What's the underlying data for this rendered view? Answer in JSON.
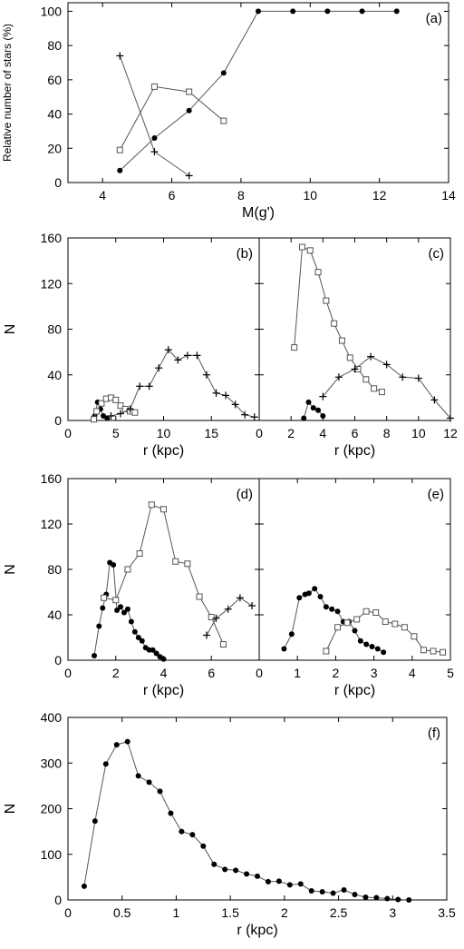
{
  "chart_data": [
    {
      "panel": "a",
      "type": "line",
      "tag": "(a)",
      "xlabel": "M(g')",
      "ylabel": "Relative number of stars (%)",
      "xlim": [
        3,
        14
      ],
      "ylim": [
        0,
        105
      ],
      "xticks": [
        4,
        6,
        8,
        10,
        12,
        14
      ],
      "yticks": [
        0,
        20,
        40,
        60,
        80,
        100
      ],
      "series": [
        {
          "marker": "dot",
          "x": [
            4.5,
            5.5,
            6.5,
            7.5,
            8.5,
            9.5,
            10.5,
            11.5,
            12.5
          ],
          "y": [
            7,
            26,
            42,
            64,
            100,
            100,
            100,
            100,
            100
          ]
        },
        {
          "marker": "square",
          "x": [
            4.5,
            5.5,
            6.5,
            7.5
          ],
          "y": [
            19,
            56,
            53,
            36
          ]
        },
        {
          "marker": "plus",
          "x": [
            4.5,
            5.5,
            6.5
          ],
          "y": [
            74,
            18,
            4
          ]
        }
      ]
    },
    {
      "panel": "b",
      "type": "line",
      "tag": "(b)",
      "xlabel": "r (kpc)",
      "ylabel": "N",
      "xlim": [
        0,
        20
      ],
      "ylim": [
        0,
        160
      ],
      "xticks": [
        0,
        5,
        10,
        15
      ],
      "yticks": [
        0,
        40,
        80,
        120,
        160
      ],
      "series": [
        {
          "marker": "dot",
          "x": [
            2.8,
            3.1,
            3.4,
            3.7,
            4.1
          ],
          "y": [
            4,
            16,
            10,
            4,
            2
          ]
        },
        {
          "marker": "square",
          "x": [
            2.7,
            3.0,
            3.5,
            4.0,
            4.5,
            5.0,
            5.5,
            6.0,
            6.5,
            7.0
          ],
          "y": [
            1,
            8,
            15,
            19,
            20,
            18,
            13,
            10,
            8,
            7
          ]
        },
        {
          "marker": "plus",
          "x": [
            4.5,
            5.5,
            6.5,
            7.5,
            8.5,
            9.5,
            10.5,
            11.5,
            12.5,
            13.5,
            14.5,
            15.5,
            16.5,
            17.5,
            18.5,
            19.5
          ],
          "y": [
            4,
            6,
            10,
            30,
            30,
            46,
            62,
            53,
            57,
            57,
            40,
            24,
            22,
            14,
            5,
            3
          ]
        }
      ]
    },
    {
      "panel": "c",
      "type": "line",
      "tag": "(c)",
      "xlabel": "r (kpc)",
      "ylabel": "",
      "xlim": [
        0,
        12
      ],
      "ylim": [
        0,
        160
      ],
      "xticks": [
        0,
        2,
        4,
        6,
        8,
        10,
        12
      ],
      "yticks": [
        0,
        40,
        80,
        120,
        160
      ],
      "series": [
        {
          "marker": "dot",
          "x": [
            2.8,
            3.1,
            3.4,
            3.7,
            4.0
          ],
          "y": [
            2,
            16,
            11,
            9,
            4
          ]
        },
        {
          "marker": "square",
          "x": [
            2.2,
            2.7,
            3.2,
            3.7,
            4.2,
            4.7,
            5.2,
            5.7,
            6.2,
            6.7,
            7.2,
            7.7
          ],
          "y": [
            64,
            152,
            149,
            130,
            105,
            85,
            70,
            55,
            45,
            36,
            28,
            25
          ]
        },
        {
          "marker": "plus",
          "x": [
            4.0,
            5.0,
            6.0,
            7.0,
            8.0,
            9.0,
            10.0,
            11.0,
            12.0
          ],
          "y": [
            21,
            38,
            45,
            56,
            49,
            38,
            37,
            18,
            2
          ]
        }
      ]
    },
    {
      "panel": "d",
      "type": "line",
      "tag": "(d)",
      "xlabel": "r (kpc)",
      "ylabel": "N",
      "xlim": [
        0,
        8
      ],
      "ylim": [
        0,
        160
      ],
      "xticks": [
        0,
        2,
        4,
        6
      ],
      "yticks": [
        0,
        40,
        80,
        120,
        160
      ],
      "series": [
        {
          "marker": "dot",
          "x": [
            1.1,
            1.3,
            1.45,
            1.6,
            1.75,
            1.9,
            2.05,
            2.2,
            2.35,
            2.5,
            2.65,
            2.8,
            2.95,
            3.1,
            3.25,
            3.4,
            3.55,
            3.7,
            3.85,
            4.0
          ],
          "y": [
            4,
            30,
            46,
            58,
            86,
            84,
            44,
            47,
            42,
            45,
            34,
            25,
            20,
            17,
            11,
            9,
            9,
            6,
            3,
            1
          ]
        },
        {
          "marker": "square",
          "x": [
            1.5,
            2.0,
            2.5,
            3.0,
            3.5,
            4.0,
            4.5,
            5.0,
            5.5,
            6.0,
            6.5
          ],
          "y": [
            55,
            53,
            80,
            94,
            137,
            133,
            87,
            85,
            56,
            38,
            14
          ]
        },
        {
          "marker": "plus",
          "x": [
            5.8,
            6.2,
            6.7,
            7.2,
            7.7
          ],
          "y": [
            22,
            37,
            45,
            55,
            48
          ]
        }
      ]
    },
    {
      "panel": "e",
      "type": "line",
      "tag": "(e)",
      "xlabel": "r (kpc)",
      "ylabel": "",
      "xlim": [
        0,
        5
      ],
      "ylim": [
        0,
        160
      ],
      "xticks": [
        0,
        1,
        2,
        3,
        4,
        5
      ],
      "yticks": [
        0,
        40,
        80,
        120,
        160
      ],
      "series": [
        {
          "marker": "dot",
          "x": [
            0.65,
            0.85,
            1.05,
            1.2,
            1.3,
            1.45,
            1.6,
            1.75,
            1.9,
            2.05,
            2.2,
            2.35,
            2.5,
            2.65,
            2.8,
            2.95,
            3.1,
            3.25
          ],
          "y": [
            10,
            23,
            55,
            58,
            59,
            63,
            56,
            47,
            45,
            43,
            34,
            34,
            26,
            17,
            14,
            12,
            10,
            7
          ]
        },
        {
          "marker": "square",
          "x": [
            1.75,
            2.05,
            2.3,
            2.55,
            2.8,
            3.05,
            3.3,
            3.55,
            3.8,
            4.05,
            4.3,
            4.55,
            4.8
          ],
          "y": [
            8,
            29,
            33,
            36,
            43,
            42,
            34,
            32,
            29,
            21,
            9,
            8,
            7
          ]
        }
      ]
    },
    {
      "panel": "f",
      "type": "line",
      "tag": "(f)",
      "xlabel": "r (kpc)",
      "ylabel": "N",
      "xlim": [
        0,
        3.5
      ],
      "ylim": [
        0,
        400
      ],
      "xticks": [
        0,
        0.5,
        1,
        1.5,
        2,
        2.5,
        3,
        3.5
      ],
      "yticks": [
        0,
        100,
        200,
        300,
        400
      ],
      "series": [
        {
          "marker": "dot",
          "x": [
            0.15,
            0.25,
            0.35,
            0.45,
            0.55,
            0.65,
            0.75,
            0.85,
            0.95,
            1.05,
            1.15,
            1.25,
            1.35,
            1.45,
            1.55,
            1.65,
            1.75,
            1.85,
            1.95,
            2.05,
            2.15,
            2.25,
            2.35,
            2.45,
            2.55,
            2.65,
            2.75,
            2.85,
            2.95,
            3.05,
            3.15
          ],
          "y": [
            30,
            173,
            298,
            340,
            347,
            272,
            258,
            238,
            190,
            150,
            143,
            118,
            78,
            67,
            65,
            57,
            52,
            40,
            41,
            33,
            35,
            20,
            18,
            15,
            22,
            12,
            6,
            5,
            3,
            1,
            0
          ]
        }
      ]
    }
  ]
}
